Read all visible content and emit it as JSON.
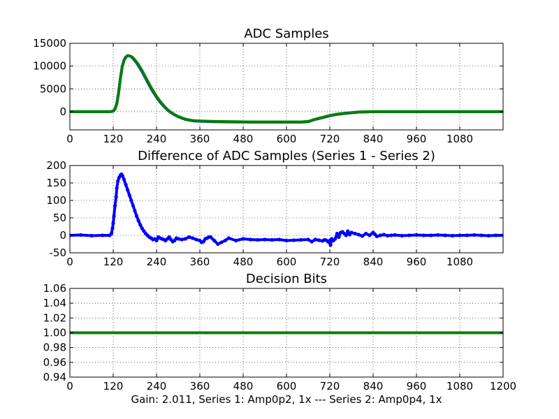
{
  "caption": "Gain: 2.011, Series 1: Amp0p2, 1x --- Series 2: Amp0p4, 1x",
  "chart_data": [
    {
      "type": "line",
      "title": "ADC Samples",
      "xlim": [
        0,
        1200
      ],
      "ylim": [
        -4000,
        15000
      ],
      "xticks": [
        0,
        120,
        240,
        360,
        480,
        600,
        720,
        840,
        960,
        1080
      ],
      "yticks": [
        0,
        5000,
        10000,
        15000
      ],
      "grid": true,
      "series": [
        {
          "name": "Series 1",
          "color": "#0000ff",
          "x": [
            0,
            110,
            115,
            120,
            125,
            130,
            135,
            140,
            145,
            150,
            155,
            160,
            165,
            170,
            175,
            180,
            185,
            190,
            200,
            210,
            220,
            230,
            240,
            250,
            260,
            270,
            280,
            290,
            300,
            320,
            340,
            360,
            400,
            450,
            500,
            550,
            600,
            640,
            660,
            680,
            700,
            720,
            740,
            760,
            780,
            800,
            820,
            840,
            900,
            1000,
            1100,
            1200
          ],
          "y": [
            0,
            0,
            30,
            150,
            600,
            1800,
            4200,
            7400,
            9900,
            11300,
            12000,
            12300,
            12250,
            12050,
            11700,
            11200,
            10700,
            10100,
            8800,
            7300,
            5800,
            4400,
            3200,
            2100,
            1200,
            400,
            -200,
            -700,
            -1100,
            -1700,
            -2000,
            -2100,
            -2200,
            -2250,
            -2300,
            -2300,
            -2300,
            -2300,
            -2200,
            -1700,
            -1300,
            -900,
            -600,
            -400,
            -250,
            -100,
            -50,
            0,
            0,
            0,
            0,
            0
          ]
        },
        {
          "name": "Series 2",
          "color": "#008000",
          "x": [
            0,
            110,
            115,
            120,
            125,
            130,
            135,
            140,
            145,
            150,
            155,
            160,
            165,
            170,
            175,
            180,
            185,
            190,
            200,
            210,
            220,
            230,
            240,
            250,
            260,
            270,
            280,
            290,
            300,
            320,
            340,
            360,
            400,
            450,
            500,
            550,
            600,
            640,
            660,
            680,
            700,
            720,
            740,
            760,
            780,
            800,
            820,
            840,
            900,
            1000,
            1100,
            1200
          ],
          "y": [
            0,
            0,
            25,
            130,
            550,
            1700,
            4100,
            7300,
            9800,
            11200,
            11950,
            12250,
            12250,
            12100,
            11800,
            11350,
            10850,
            10300,
            9000,
            7500,
            6000,
            4600,
            3350,
            2250,
            1300,
            500,
            -150,
            -650,
            -1050,
            -1650,
            -1950,
            -2050,
            -2150,
            -2200,
            -2250,
            -2250,
            -2250,
            -2250,
            -2150,
            -1650,
            -1250,
            -850,
            -550,
            -350,
            -200,
            -80,
            -30,
            0,
            0,
            0,
            0,
            0
          ]
        }
      ]
    },
    {
      "type": "line",
      "title": "Difference of ADC Samples (Series 1 - Series 2)",
      "xlim": [
        0,
        1200
      ],
      "ylim": [
        -50,
        200
      ],
      "xticks": [
        0,
        120,
        240,
        360,
        480,
        600,
        720,
        840,
        960,
        1080
      ],
      "yticks": [
        -50,
        0,
        50,
        100,
        150,
        200
      ],
      "grid": true,
      "series": [
        {
          "name": "Series 1 - Series 2",
          "color": "#0000ff",
          "marker": "dot",
          "x": [
            0,
            30,
            60,
            90,
            110,
            115,
            118,
            120,
            122,
            125,
            128,
            130,
            133,
            136,
            140,
            143,
            146,
            150,
            155,
            160,
            165,
            170,
            175,
            180,
            185,
            190,
            195,
            200,
            205,
            210,
            215,
            220,
            225,
            230,
            235,
            240,
            245,
            250,
            255,
            260,
            265,
            270,
            275,
            280,
            285,
            290,
            295,
            300,
            310,
            320,
            330,
            340,
            350,
            360,
            365,
            370,
            375,
            380,
            385,
            390,
            400,
            410,
            420,
            430,
            440,
            460,
            480,
            500,
            520,
            540,
            560,
            580,
            600,
            620,
            640,
            660,
            670,
            680,
            690,
            700,
            705,
            710,
            715,
            718,
            720,
            722,
            725,
            730,
            735,
            740,
            745,
            750,
            755,
            760,
            765,
            770,
            775,
            780,
            790,
            800,
            810,
            820,
            830,
            840,
            845,
            850,
            860,
            870,
            880,
            890,
            900,
            920,
            940,
            960,
            980,
            1000,
            1020,
            1040,
            1060,
            1080,
            1100,
            1120,
            1140,
            1160,
            1180,
            1200
          ],
          "y": [
            0,
            1,
            -1,
            0,
            0,
            5,
            20,
            35,
            55,
            85,
            110,
            135,
            155,
            165,
            172,
            175,
            170,
            160,
            145,
            130,
            115,
            100,
            85,
            70,
            55,
            42,
            30,
            20,
            12,
            5,
            0,
            -5,
            -8,
            -12,
            -10,
            -15,
            -5,
            -8,
            -10,
            -12,
            -15,
            -10,
            -5,
            -12,
            -18,
            -15,
            -8,
            -10,
            -12,
            -10,
            -5,
            -8,
            -12,
            -15,
            -20,
            -18,
            -10,
            -8,
            -5,
            -5,
            -15,
            -25,
            -20,
            -15,
            -8,
            -15,
            -10,
            -12,
            -13,
            -12,
            -13,
            -12,
            -15,
            -14,
            -13,
            -12,
            -18,
            -12,
            -14,
            -16,
            -13,
            -14,
            -18,
            -20,
            -15,
            -28,
            -10,
            -15,
            -10,
            5,
            -5,
            8,
            10,
            5,
            0,
            12,
            2,
            8,
            5,
            2,
            -2,
            5,
            0,
            8,
            3,
            -3,
            0,
            2,
            -1,
            0,
            1,
            -1,
            0,
            1,
            0,
            0,
            1,
            0,
            -1,
            0,
            0,
            1,
            0,
            -1,
            0,
            0
          ]
        }
      ]
    },
    {
      "type": "line",
      "title": "Decision Bits",
      "xlim": [
        0,
        1200
      ],
      "ylim": [
        0.94,
        1.06
      ],
      "xticks": [
        0,
        120,
        240,
        360,
        480,
        600,
        720,
        840,
        960,
        1080,
        1200
      ],
      "yticks": [
        0.94,
        0.96,
        0.98,
        1.0,
        1.02,
        1.04,
        1.06
      ],
      "ytick_labels": [
        "0.94",
        "0.96",
        "0.98",
        "1.00",
        "1.02",
        "1.04",
        "1.06"
      ],
      "grid": true,
      "series": [
        {
          "name": "Decision Bits",
          "color": "#008000",
          "x": [
            0,
            1200
          ],
          "y": [
            1.0,
            1.0
          ]
        }
      ]
    }
  ]
}
